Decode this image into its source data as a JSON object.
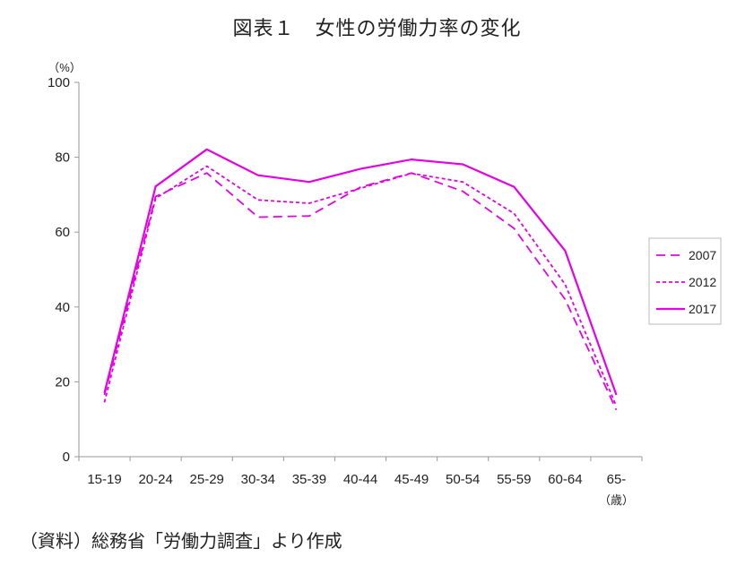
{
  "title": "図表１　女性の労働力率の変化",
  "source": "（資料）総務省「労働力調査」より作成",
  "chart_data": {
    "type": "line",
    "title": "図表１　女性の労働力率の変化",
    "ylabel": "（%）",
    "xlabel": "（歳）",
    "ylim": [
      0,
      100
    ],
    "yticks": [
      0,
      20,
      40,
      60,
      80,
      100
    ],
    "grid": false,
    "legend_position": "right",
    "categories": [
      "15-19",
      "20-24",
      "25-29",
      "30-34",
      "35-39",
      "40-44",
      "45-49",
      "50-54",
      "55-59",
      "60-64",
      "65-"
    ],
    "series": [
      {
        "name": "2007",
        "style": "dashed",
        "color": "#e600e6",
        "values": [
          16.5,
          69.5,
          75.8,
          64.0,
          64.3,
          72.0,
          75.8,
          70.9,
          61.0,
          42.0,
          12.5
        ]
      },
      {
        "name": "2012",
        "style": "dotted",
        "color": "#e600e6",
        "values": [
          14.5,
          69.0,
          77.6,
          68.6,
          67.7,
          71.7,
          75.7,
          73.4,
          65.0,
          46.0,
          13.5
        ]
      },
      {
        "name": "2017",
        "style": "solid",
        "color": "#e600e6",
        "values": [
          17.0,
          72.2,
          82.1,
          75.2,
          73.4,
          76.9,
          79.4,
          78.1,
          72.1,
          55.0,
          16.5
        ]
      }
    ]
  }
}
